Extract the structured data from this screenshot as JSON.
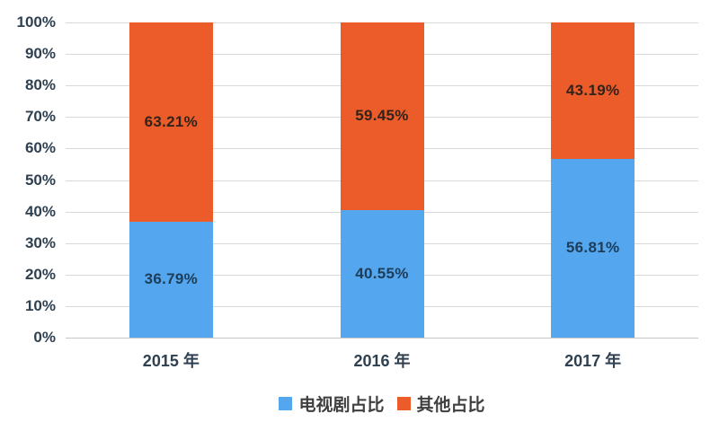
{
  "chart_data": {
    "type": "bar",
    "stacked": true,
    "percent_stacked": true,
    "title": "",
    "xlabel": "",
    "ylabel": "",
    "categories": [
      "2015 年",
      "2016 年",
      "2017 年"
    ],
    "series": [
      {
        "name": "电视剧占比",
        "color": "#54a6ee",
        "values": [
          36.79,
          40.55,
          56.81
        ],
        "labels": [
          "36.79%",
          "40.55%",
          "56.81%"
        ],
        "label_color": "#1d3d58"
      },
      {
        "name": "其他占比",
        "color": "#eb5c2a",
        "values": [
          63.21,
          59.45,
          43.19
        ],
        "labels": [
          "63.21%",
          "59.45%",
          "43.19%"
        ],
        "label_color": "#33231a"
      }
    ],
    "yticks": [
      "100%",
      "90%",
      "80%",
      "70%",
      "60%",
      "50%",
      "40%",
      "30%",
      "20%",
      "10%",
      "0%"
    ],
    "ylim": [
      0,
      100
    ],
    "grid": true,
    "gridline_color": "#d9d9d9",
    "axis_line_color": "#c6c6c6",
    "tick_label_color": "#2f4050",
    "legend_position": "bottom"
  }
}
